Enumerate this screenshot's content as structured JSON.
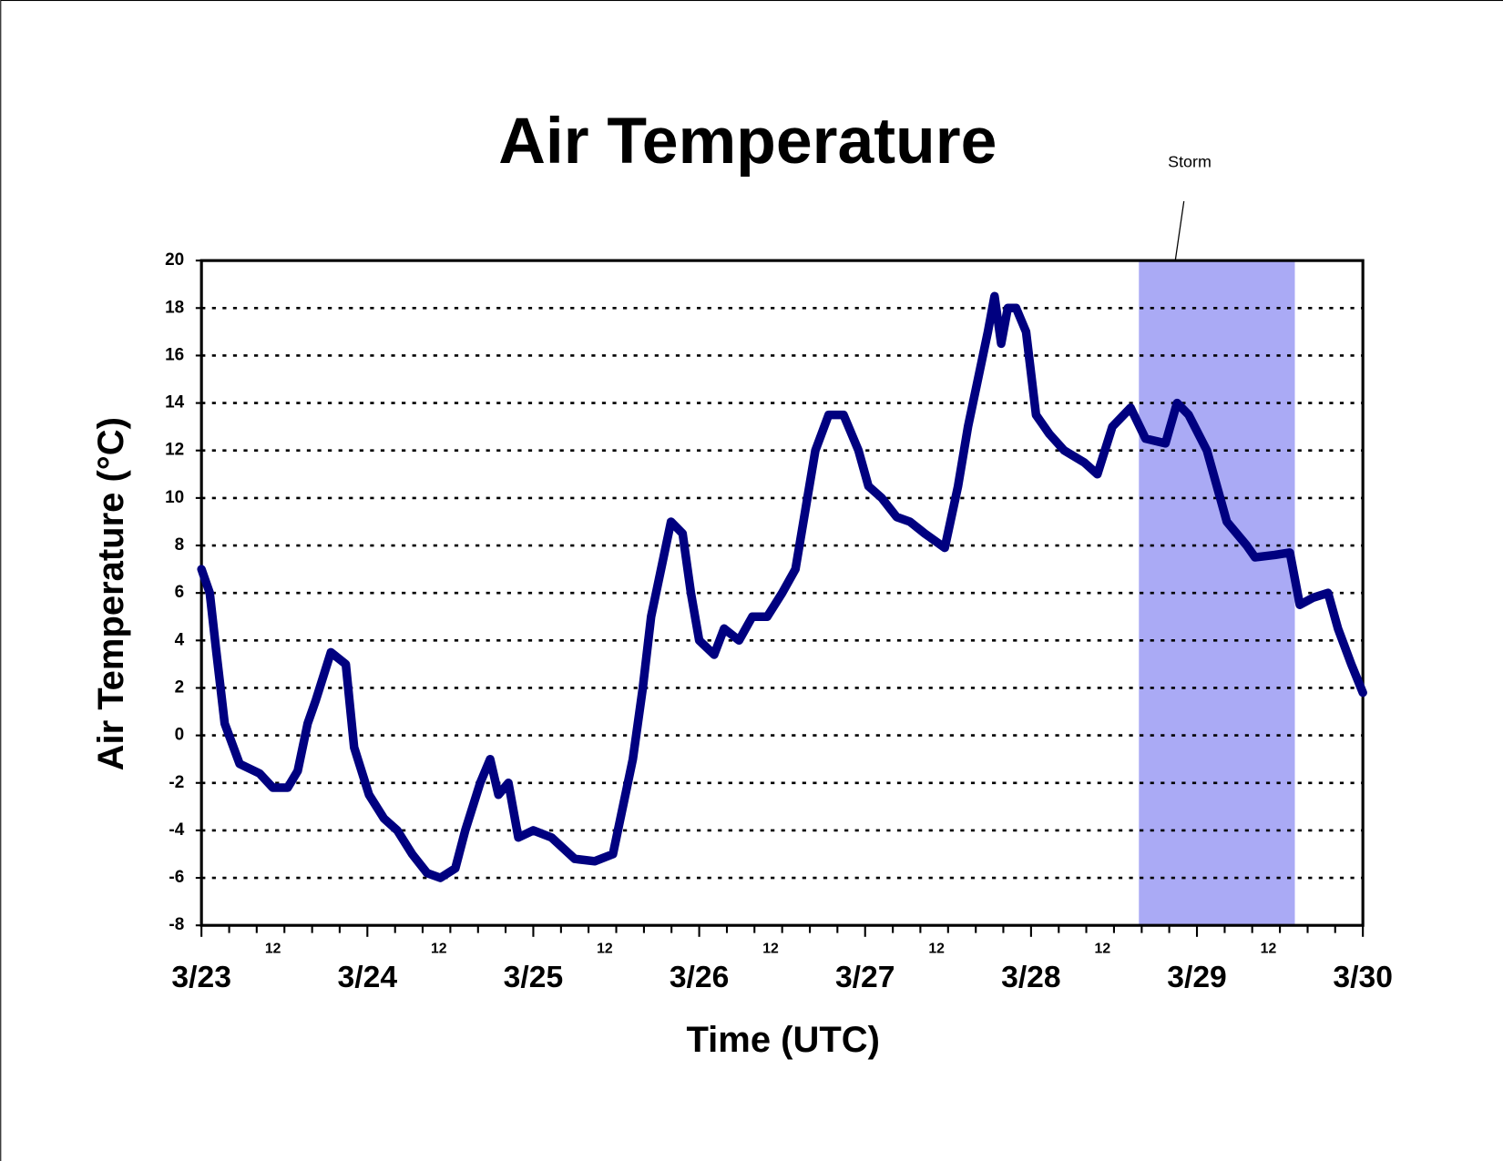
{
  "chart_data": {
    "type": "line",
    "title": "Air Temperature",
    "xlabel": "Time (UTC)",
    "ylabel": "Air Temperature (°C)",
    "annotation": {
      "text": "Storm",
      "x_start": 5.65,
      "x_end": 6.59,
      "color": "#aaaaf5"
    },
    "x": [
      0,
      0.05,
      0.09,
      0.14,
      0.23,
      0.35,
      0.43,
      0.52,
      0.58,
      0.64,
      0.69,
      0.78,
      0.87,
      0.92,
      1.01,
      1.1,
      1.18,
      1.27,
      1.36,
      1.44,
      1.53,
      1.59,
      1.68,
      1.74,
      1.79,
      1.85,
      1.91,
      2.0,
      2.11,
      2.25,
      2.37,
      2.48,
      2.54,
      2.6,
      2.66,
      2.71,
      2.77,
      2.83,
      2.9,
      2.95,
      3.0,
      3.09,
      3.15,
      3.24,
      3.32,
      3.41,
      3.5,
      3.58,
      3.64,
      3.7,
      3.78,
      3.87,
      3.96,
      4.02,
      4.1,
      4.19,
      4.27,
      4.36,
      4.48,
      4.56,
      4.62,
      4.68,
      4.74,
      4.78,
      4.82,
      4.86,
      4.91,
      4.97,
      5.03,
      5.11,
      5.2,
      5.32,
      5.4,
      5.49,
      5.6,
      5.69,
      5.81,
      5.88,
      5.95,
      6.06,
      6.18,
      6.3,
      6.35,
      6.47,
      6.56,
      6.62,
      6.7,
      6.79,
      6.85,
      6.93,
      7.0
    ],
    "series": [
      {
        "name": "Air Temperature",
        "color": "#000080",
        "values": [
          7,
          6,
          3.5,
          0.5,
          -1.2,
          -1.6,
          -2.2,
          -2.2,
          -1.5,
          0.5,
          1.5,
          3.5,
          3,
          -0.5,
          -2.5,
          -3.5,
          -4,
          -5,
          -5.8,
          -6,
          -5.6,
          -4,
          -2,
          -1,
          -2.5,
          -2,
          -4.3,
          -4,
          -4.3,
          -5.2,
          -5.3,
          -5,
          -3,
          -1,
          2,
          5,
          7,
          9,
          8.5,
          6,
          4,
          3.4,
          4.5,
          4,
          5,
          5,
          6,
          7,
          9.5,
          12,
          13.5,
          13.5,
          12,
          10.5,
          10,
          9.2,
          9,
          8.5,
          7.9,
          10.5,
          13,
          15,
          17,
          18.5,
          16.5,
          18,
          18,
          17,
          13.5,
          12.7,
          12,
          11.5,
          11,
          13,
          13.8,
          12.5,
          12.3,
          14,
          13.5,
          12,
          9,
          8,
          7.5,
          7.6,
          7.7,
          5.5,
          5.8,
          6,
          4.5,
          3,
          1.8
        ]
      }
    ],
    "xlim": [
      0,
      7
    ],
    "xticks": [
      {
        "value": 0,
        "label": "3/23"
      },
      {
        "value": 0.5,
        "label": "12"
      },
      {
        "value": 1,
        "label": "3/24"
      },
      {
        "value": 1.5,
        "label": "12"
      },
      {
        "value": 2,
        "label": "3/25"
      },
      {
        "value": 2.5,
        "label": "12"
      },
      {
        "value": 3,
        "label": "3/26"
      },
      {
        "value": 3.5,
        "label": "12"
      },
      {
        "value": 4,
        "label": "3/27"
      },
      {
        "value": 4.5,
        "label": "12"
      },
      {
        "value": 5,
        "label": "3/28"
      },
      {
        "value": 5.5,
        "label": "12"
      },
      {
        "value": 6,
        "label": "3/29"
      },
      {
        "value": 6.5,
        "label": "12"
      },
      {
        "value": 7,
        "label": "3/30"
      }
    ],
    "xminorticks": [
      0.167,
      0.333,
      0.667,
      0.833,
      1.167,
      1.333,
      1.667,
      1.833,
      2.167,
      2.333,
      2.667,
      2.833,
      3.167,
      3.333,
      3.667,
      3.833,
      4.167,
      4.333,
      4.667,
      4.833,
      5.167,
      5.333,
      5.667,
      5.833,
      6.167,
      6.333,
      6.667,
      6.833
    ],
    "ylim": [
      -8,
      20
    ],
    "yticks": [
      -8,
      -6,
      -4,
      -2,
      0,
      2,
      4,
      6,
      8,
      10,
      12,
      14,
      16,
      18,
      20
    ],
    "grid": true
  }
}
